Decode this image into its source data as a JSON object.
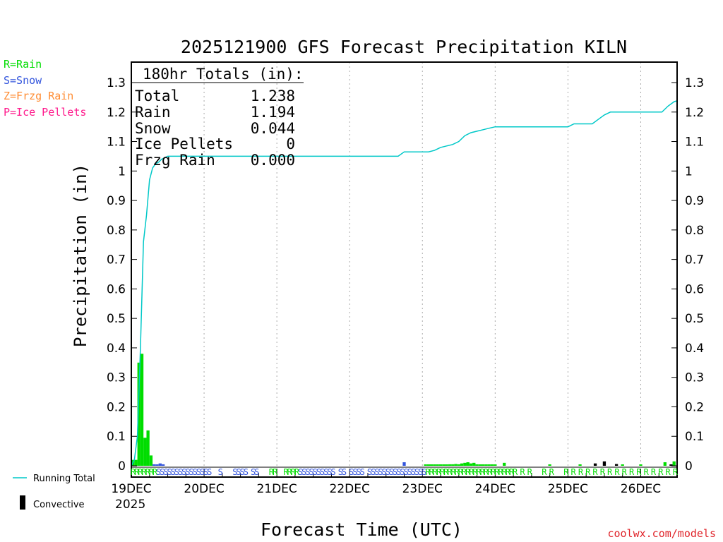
{
  "chart_data": {
    "type": "bar",
    "title": "2025121900 GFS Forecast Precipitation KILN",
    "xlabel": "Forecast Time (UTC)",
    "ylabel": "Precipitation (in)",
    "ylim": [
      0,
      1.3
    ],
    "xlim_hours": [
      0,
      180
    ],
    "y_ticks": [
      "0",
      "0.1",
      "0.2",
      "0.3",
      "0.4",
      "0.5",
      "0.6",
      "0.7",
      "0.8",
      "0.9",
      "1",
      "1.1",
      "1.2",
      "1.3"
    ],
    "x_ticks": [
      {
        "hour": 0,
        "label": "19DEC"
      },
      {
        "hour": 24,
        "label": "20DEC"
      },
      {
        "hour": 48,
        "label": "21DEC"
      },
      {
        "hour": 72,
        "label": "22DEC"
      },
      {
        "hour": 96,
        "label": "23DEC"
      },
      {
        "hour": 120,
        "label": "24DEC"
      },
      {
        "hour": 144,
        "label": "25DEC"
      },
      {
        "hour": 168,
        "label": "26DEC"
      }
    ],
    "year_label": "2025",
    "legend": [
      {
        "label": "R=Rain",
        "color": "#00dd00"
      },
      {
        "label": "S=Snow",
        "color": "#3355dd"
      },
      {
        "label": "Z=Frzg Rain",
        "color": "#ff8c33"
      },
      {
        "label": "P=Ice Pellets",
        "color": "#ff1a8c"
      }
    ],
    "line_legend": "Running Total",
    "convective_legend": "Convective",
    "totals": {
      "header": "180hr Totals (in):",
      "rows": [
        {
          "label": "Total",
          "value": "1.238"
        },
        {
          "label": "Rain",
          "value": "1.194"
        },
        {
          "label": "Snow",
          "value": "0.044"
        },
        {
          "label": "Ice Pellets",
          "value": "0"
        },
        {
          "label": "Frzg Rain",
          "value": "0.000"
        }
      ]
    },
    "series": [
      {
        "name": "Rain",
        "color": "#00dd00",
        "points": [
          [
            0.5,
            0.02
          ],
          [
            1.5,
            0.02
          ],
          [
            2.5,
            0.35
          ],
          [
            3.5,
            0.38
          ],
          [
            4.5,
            0.095
          ],
          [
            5.5,
            0.12
          ],
          [
            6.5,
            0.035
          ],
          [
            97,
            0.003
          ],
          [
            98,
            0.003
          ],
          [
            99,
            0.003
          ],
          [
            100,
            0.004
          ],
          [
            101,
            0.004
          ],
          [
            102,
            0.003
          ],
          [
            103,
            0.003
          ],
          [
            104,
            0.004
          ],
          [
            105,
            0.005
          ],
          [
            106,
            0.005
          ],
          [
            107,
            0.006
          ],
          [
            108,
            0.005
          ],
          [
            109,
            0.008
          ],
          [
            110,
            0.01
          ],
          [
            111,
            0.012
          ],
          [
            112,
            0.008
          ],
          [
            113,
            0.01
          ],
          [
            114,
            0.005
          ],
          [
            115,
            0.004
          ],
          [
            116,
            0.004
          ],
          [
            117,
            0.003
          ],
          [
            118,
            0.003
          ],
          [
            119,
            0.003
          ],
          [
            120,
            0.004
          ],
          [
            123,
            0.01
          ],
          [
            138,
            0.002
          ],
          [
            148,
            0.004
          ],
          [
            162,
            0.003
          ],
          [
            168,
            0.003
          ],
          [
            176,
            0.012
          ],
          [
            179,
            0.015
          ]
        ]
      },
      {
        "name": "Snow",
        "color": "#3355dd",
        "points": [
          [
            7.5,
            0.005
          ],
          [
            8.5,
            0.003
          ],
          [
            9.5,
            0.008
          ],
          [
            10.5,
            0.005
          ],
          [
            90,
            0.012
          ]
        ]
      },
      {
        "name": "Convective",
        "color": "#000000",
        "points": [
          [
            153,
            0.008
          ],
          [
            156,
            0.015
          ],
          [
            160,
            0.006
          ],
          [
            178,
            0.004
          ]
        ]
      }
    ],
    "running_total": {
      "name": "Running Total",
      "color": "#00c8c8",
      "points": [
        [
          0,
          0
        ],
        [
          1,
          0.02
        ],
        [
          2,
          0.1
        ],
        [
          3,
          0.4
        ],
        [
          4,
          0.76
        ],
        [
          5,
          0.85
        ],
        [
          6,
          0.97
        ],
        [
          7,
          1.01
        ],
        [
          8,
          1.025
        ],
        [
          9,
          1.03
        ],
        [
          10,
          1.04
        ],
        [
          11,
          1.045
        ],
        [
          12,
          1.05
        ],
        [
          88,
          1.05
        ],
        [
          90,
          1.065
        ],
        [
          98,
          1.065
        ],
        [
          100,
          1.07
        ],
        [
          102,
          1.08
        ],
        [
          104,
          1.085
        ],
        [
          106,
          1.09
        ],
        [
          108,
          1.1
        ],
        [
          110,
          1.12
        ],
        [
          112,
          1.13
        ],
        [
          114,
          1.135
        ],
        [
          116,
          1.14
        ],
        [
          118,
          1.145
        ],
        [
          120,
          1.15
        ],
        [
          144,
          1.15
        ],
        [
          146,
          1.16
        ],
        [
          152,
          1.16
        ],
        [
          154,
          1.175
        ],
        [
          156,
          1.19
        ],
        [
          158,
          1.2
        ],
        [
          175,
          1.2
        ],
        [
          177,
          1.22
        ],
        [
          179,
          1.235
        ],
        [
          180,
          1.238
        ]
      ]
    },
    "type_strip": "RRRRRRRSSSSSSSSSSSSSSS  S   SSSS SS   RR  RRRRSSSSSSSSSS SS SSSS SSSSSSSSSSSSSSSSRRRRRRRRRRRRRRRRRRRRRRRRR R R   R R   R R R R R R R R R R R R R R R R"
  },
  "attribution": "coolwx.com/models"
}
